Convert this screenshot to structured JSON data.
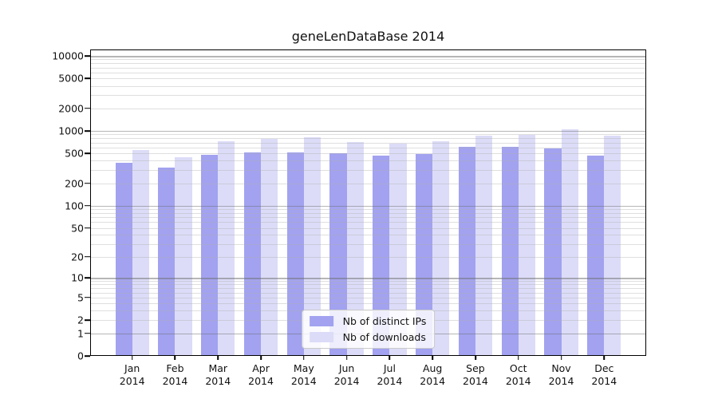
{
  "title": "geneLenDataBase 2014",
  "chart_data": {
    "type": "bar",
    "title": "geneLenDataBase 2014",
    "scale": "log10(1+y)",
    "grid": true,
    "legend_position": "lower center, inside plot",
    "ylim": [
      0,
      12200
    ],
    "yticks": [
      10000,
      5000,
      2000,
      1000,
      500,
      200,
      100,
      50,
      20,
      10,
      5,
      2,
      1,
      0
    ],
    "major_grid_values": [
      1,
      10,
      100,
      1000,
      10000
    ],
    "categories": [
      "Jan",
      "Feb",
      "Mar",
      "Apr",
      "May",
      "Jun",
      "Jul",
      "Aug",
      "Sep",
      "Oct",
      "Nov",
      "Dec"
    ],
    "category_year": "2014",
    "series": [
      {
        "name": "Nb of distinct IPs",
        "color": "#a2a2f0",
        "values": [
          375,
          320,
          485,
          520,
          515,
          505,
          465,
          495,
          620,
          610,
          580,
          470
        ]
      },
      {
        "name": "Nb of downloads",
        "color": "#dcdcf8",
        "values": [
          560,
          445,
          720,
          775,
          820,
          705,
          670,
          730,
          860,
          885,
          1050,
          855
        ]
      }
    ]
  }
}
